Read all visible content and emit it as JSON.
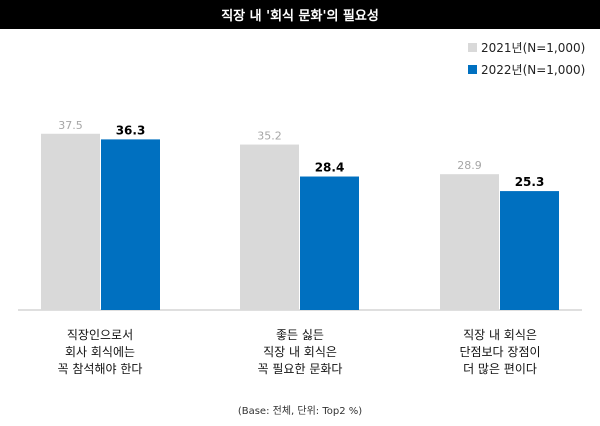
{
  "title": "직장 내 '회식 문화'의 필요성",
  "colors": {
    "series_2021": "#d9d9d9",
    "series_2022": "#0070c0",
    "label_2021": "#a6a6a6",
    "label_2022": "#000000"
  },
  "legend": [
    {
      "label": "2021년(N=1,000)",
      "color": "#d9d9d9"
    },
    {
      "label": "2022년(N=1,000)",
      "color": "#0070c0"
    }
  ],
  "category_labels": [
    [
      "직장인으로서",
      "회사 회식에는",
      "꼭 참석해야 한다"
    ],
    [
      "좋든 싫든",
      "직장 내 회식은",
      "꼭 필요한 문화다"
    ],
    [
      "직장 내 회식은",
      "단점보다 장점이",
      "더 많은 편이다"
    ]
  ],
  "base_note": "(Base: 전체, 단위: Top2 %)",
  "chart_data": {
    "type": "bar",
    "categories": [
      "직장인으로서 회사 회식에는 꼭 참석해야 한다",
      "좋든 싫든 직장 내 회식은 꼭 필요한 문화다",
      "직장 내 회식은 단점보다 장점이 더 많은 편이다"
    ],
    "series": [
      {
        "name": "2021년(N=1,000)",
        "values": [
          37.5,
          35.2,
          28.9
        ]
      },
      {
        "name": "2022년(N=1,000)",
        "values": [
          36.3,
          28.4,
          25.3
        ]
      }
    ],
    "ylim": [
      0,
      50
    ],
    "grid": false,
    "legend": "top-right"
  }
}
